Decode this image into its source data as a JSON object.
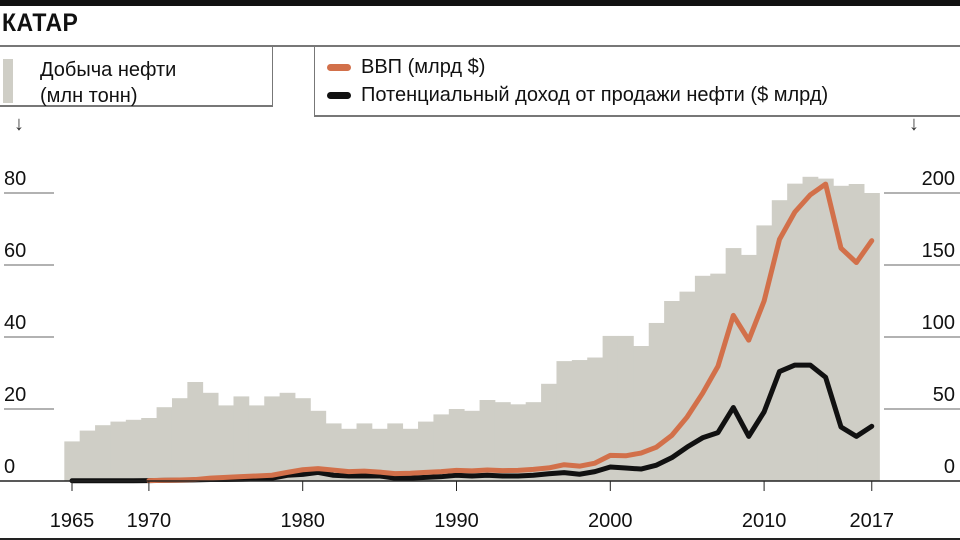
{
  "header": {
    "title": "КАТАР"
  },
  "legend": {
    "bars_label_line1": "Добыча нефти",
    "bars_label_line2": "(млн тонн)",
    "gdp_label": "ВВП (млрд $)",
    "revenue_label": "Потенциальный доход от продажи нефти ($ млрд)"
  },
  "colors": {
    "bars": "#cfcec6",
    "gdp": "#d2704a",
    "revenue": "#111111"
  },
  "chart_data": {
    "type": "bar+line",
    "title": "КАТАР",
    "x_tick_labels": [
      "1965",
      "1970",
      "1980",
      "1990",
      "2000",
      "2010",
      "2017"
    ],
    "x_ticks": [
      1965,
      1970,
      1980,
      1990,
      2000,
      2010,
      2017
    ],
    "left_axis": {
      "label": "Добыча нефти (млн тонн)",
      "ylim": [
        0,
        80
      ],
      "ticks": [
        0,
        20,
        40,
        60,
        80
      ]
    },
    "right_axis": {
      "label": "$ млрд",
      "ylim": [
        0,
        200
      ],
      "ticks": [
        0,
        50,
        100,
        150,
        200
      ]
    },
    "years": [
      1965,
      1966,
      1967,
      1968,
      1969,
      1970,
      1971,
      1972,
      1973,
      1974,
      1975,
      1976,
      1977,
      1978,
      1979,
      1980,
      1981,
      1982,
      1983,
      1984,
      1985,
      1986,
      1987,
      1988,
      1989,
      1990,
      1991,
      1992,
      1993,
      1994,
      1995,
      1996,
      1997,
      1998,
      1999,
      2000,
      2001,
      2002,
      2003,
      2004,
      2005,
      2006,
      2007,
      2008,
      2009,
      2010,
      2011,
      2012,
      2013,
      2014,
      2015,
      2016,
      2017
    ],
    "series": [
      {
        "name": "Добыча нефти (млн тонн)",
        "type": "bar",
        "axis": "left",
        "values": [
          11,
          14,
          15.5,
          16.5,
          17,
          17.5,
          20.5,
          23,
          27.5,
          24.5,
          21,
          23.5,
          21,
          23.5,
          24.5,
          23,
          19.5,
          16,
          14.5,
          16,
          14.5,
          16,
          14.5,
          16.5,
          18.5,
          20,
          19.5,
          22.5,
          21.9,
          21.3,
          21.9,
          27,
          33.3,
          33.6,
          34.3,
          40.3,
          40.3,
          37.5,
          43.9,
          50,
          52.6,
          57,
          57.6,
          64.7,
          62.8,
          71,
          78,
          82.6,
          84.5,
          84,
          82,
          82.5,
          80
        ]
      },
      {
        "name": "ВВП (млрд $)",
        "type": "line",
        "axis": "right",
        "start_year": 1970,
        "values": [
          0.3,
          0.5,
          0.7,
          1,
          2,
          2.5,
          3,
          3.5,
          4,
          6,
          7.8,
          8.6,
          7.6,
          6.5,
          6.9,
          6.2,
          5.1,
          5.4,
          6,
          6.5,
          7.4,
          7,
          7.6,
          7.2,
          7.4,
          8.1,
          9.1,
          11.3,
          10.3,
          12.4,
          17.8,
          17.5,
          19.4,
          23.5,
          31.7,
          44.5,
          60.9,
          79.7,
          115,
          97.8,
          125,
          167.8,
          186.8,
          198.7,
          206.2,
          161.7,
          151.7,
          166.9
        ]
      },
      {
        "name": "Потенциальный доход от продажи нефти ($ млрд)",
        "type": "line",
        "axis": "right",
        "start_year": 1965,
        "values": [
          0.2,
          0.2,
          0.2,
          0.2,
          0.2,
          0.3,
          0.4,
          0.5,
          0.8,
          1,
          1,
          1.2,
          1.5,
          2,
          4,
          4.6,
          6,
          4,
          3.5,
          3.5,
          3.5,
          2,
          2,
          2.5,
          3,
          4,
          3.5,
          4,
          3.5,
          3.5,
          4,
          5,
          5.8,
          4.7,
          6.5,
          9.7,
          9,
          8.3,
          11,
          16.2,
          23.6,
          30,
          33.6,
          51,
          31,
          48,
          76,
          80.5,
          80.5,
          72,
          37.5,
          31,
          38
        ]
      }
    ]
  }
}
